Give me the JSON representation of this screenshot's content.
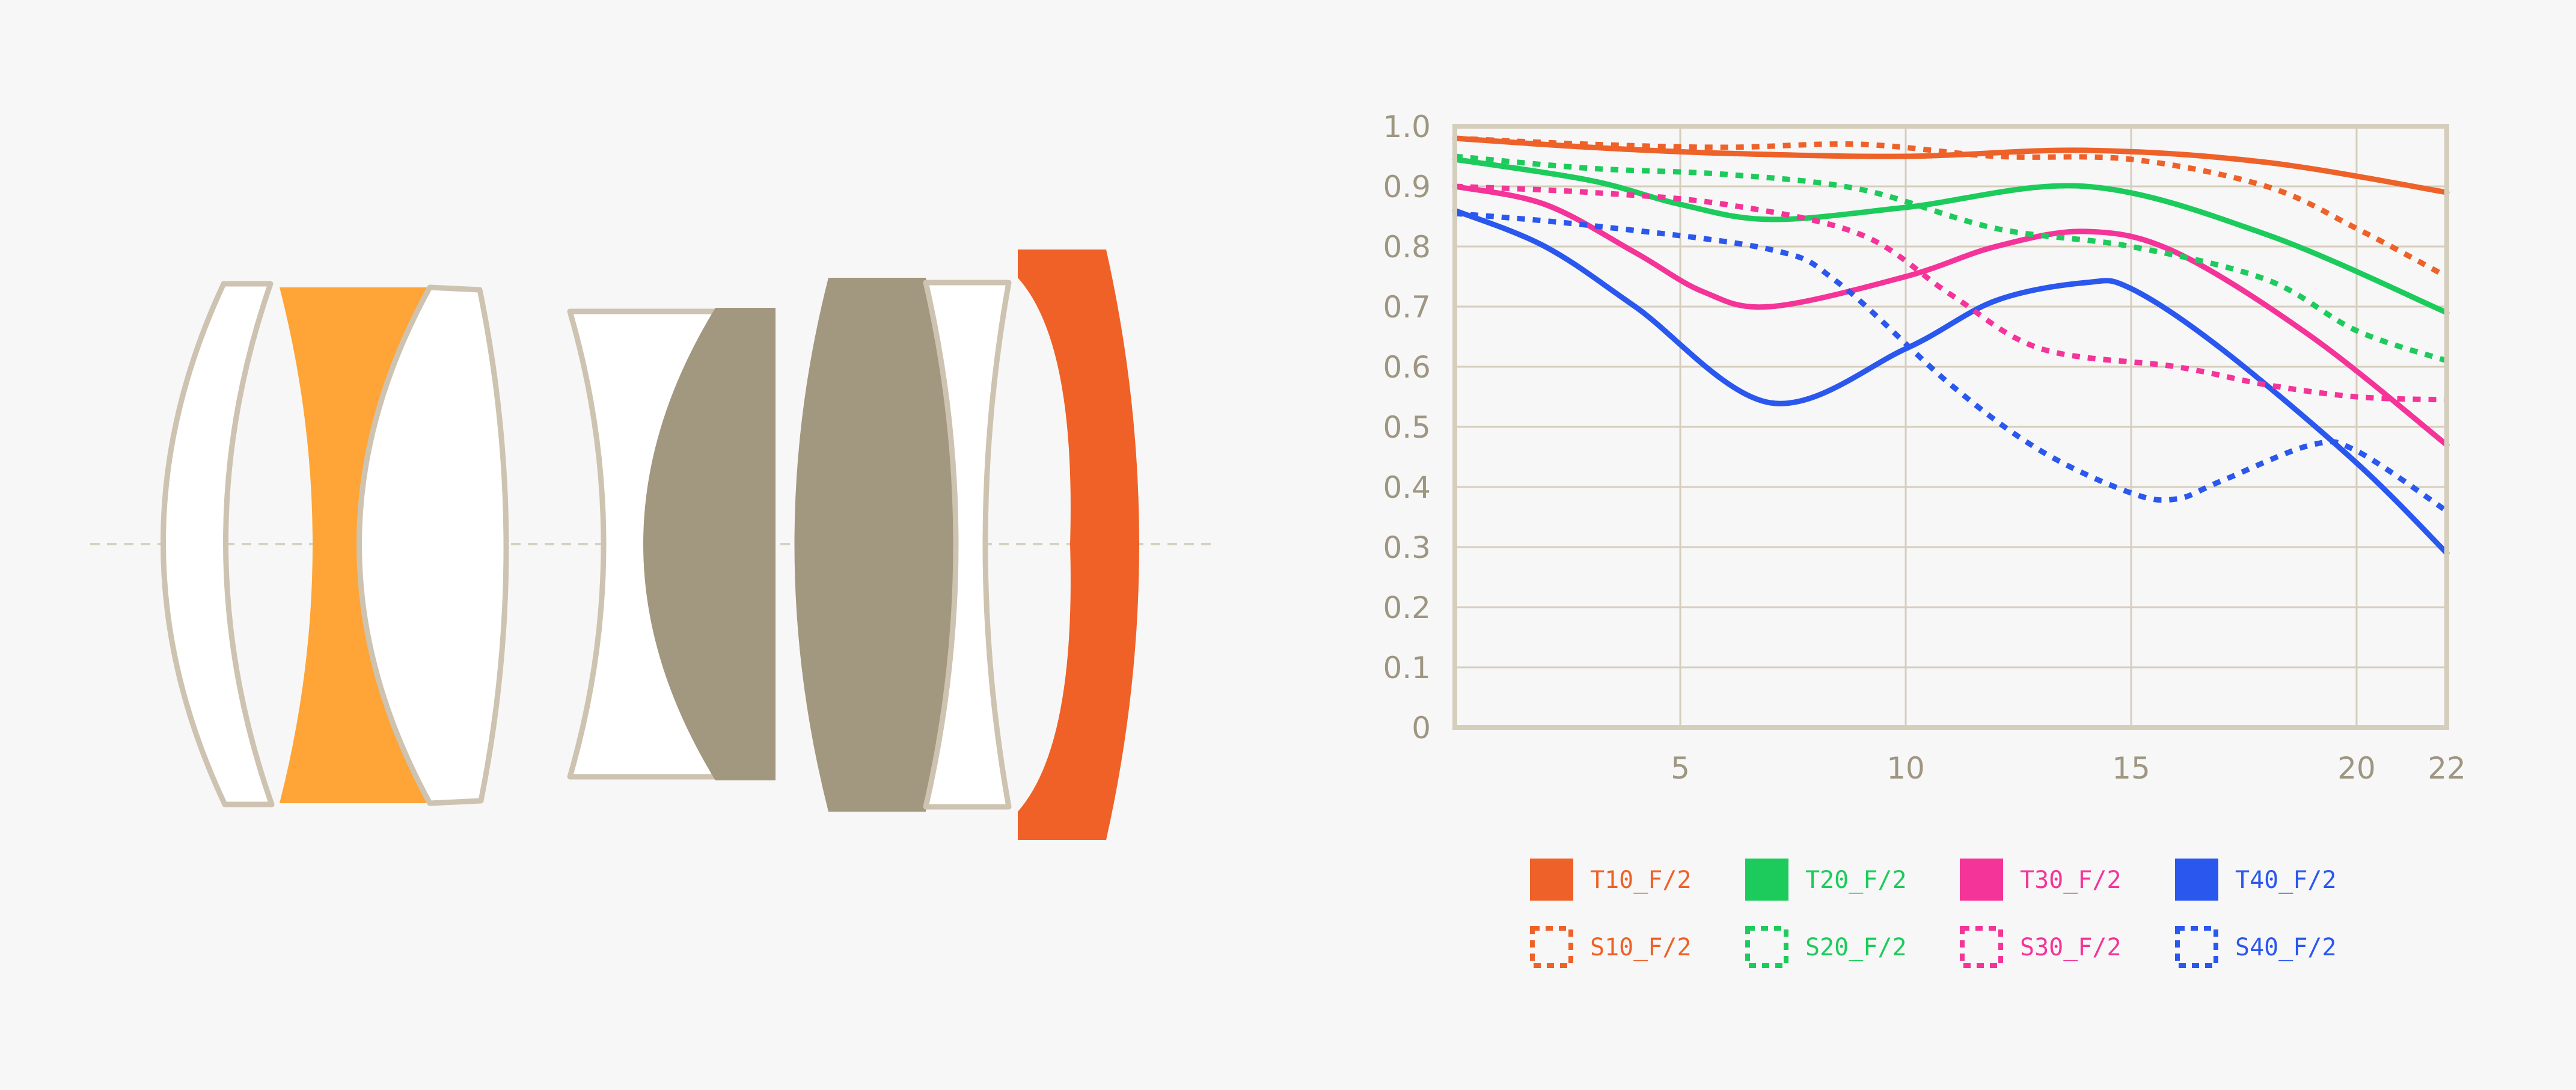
{
  "diagram": {
    "optical_axis_color": "#d6d0c2",
    "element_colors": {
      "outline": "#cec3b1",
      "clear": "#ffffff",
      "anomalous_dispersion": "#ffa436",
      "extra_low_dispersion": "#a2977f",
      "aspherical": "#f06127"
    }
  },
  "chart_data": {
    "type": "line",
    "xlim": [
      0,
      22
    ],
    "ylim": [
      0,
      1.0
    ],
    "x_ticks": [
      5,
      10,
      15,
      20,
      22
    ],
    "x_tick_labels": [
      "5",
      "10",
      "15",
      "20",
      "22"
    ],
    "y_ticks": [
      0,
      0.1,
      0.2,
      0.3,
      0.4,
      0.5,
      0.6,
      0.7,
      0.8,
      0.9,
      1.0
    ],
    "y_tick_labels": [
      "0",
      "0.1",
      "0.2",
      "0.3",
      "0.4",
      "0.5",
      "0.6",
      "0.7",
      "0.8",
      "0.9",
      "1.0"
    ],
    "grid": true,
    "legend_position": "bottom",
    "frame_color": "#d6cebd",
    "grid_color": "#d6cebd",
    "tick_color": "#9e9681",
    "series": [
      {
        "name": "T10_F/2",
        "style": "solid",
        "color": "#ee6128",
        "x": [
          0,
          3,
          6,
          10,
          14,
          18,
          22
        ],
        "y": [
          0.98,
          0.965,
          0.955,
          0.95,
          0.96,
          0.94,
          0.89
        ]
      },
      {
        "name": "T20_F/2",
        "style": "solid",
        "color": "#1ccb5b",
        "x": [
          0,
          3,
          5,
          7,
          10,
          14,
          18,
          22
        ],
        "y": [
          0.945,
          0.91,
          0.87,
          0.845,
          0.865,
          0.9,
          0.82,
          0.69
        ]
      },
      {
        "name": "T30_F/2",
        "style": "solid",
        "color": "#f43499",
        "x": [
          0,
          2,
          4,
          5.5,
          7,
          10,
          12,
          14,
          16,
          19,
          22
        ],
        "y": [
          0.9,
          0.87,
          0.79,
          0.725,
          0.7,
          0.75,
          0.8,
          0.825,
          0.79,
          0.65,
          0.47
        ]
      },
      {
        "name": "T40_F/2",
        "style": "solid",
        "color": "#2a57ee",
        "x": [
          0,
          2,
          4,
          7,
          10,
          12,
          14,
          15,
          17,
          20,
          22
        ],
        "y": [
          0.86,
          0.8,
          0.7,
          0.54,
          0.63,
          0.71,
          0.74,
          0.73,
          0.63,
          0.44,
          0.29
        ]
      },
      {
        "name": "S10_F/2",
        "style": "dotted",
        "color": "#ee6128",
        "x": [
          0,
          3,
          6,
          9,
          12,
          15,
          18,
          20,
          22
        ],
        "y": [
          0.98,
          0.97,
          0.965,
          0.97,
          0.95,
          0.945,
          0.9,
          0.83,
          0.75
        ]
      },
      {
        "name": "S20_F/2",
        "style": "dotted",
        "color": "#1ccb5b",
        "x": [
          0,
          3,
          6,
          9,
          12,
          15,
          18,
          20,
          22
        ],
        "y": [
          0.95,
          0.93,
          0.92,
          0.895,
          0.83,
          0.8,
          0.745,
          0.66,
          0.61
        ]
      },
      {
        "name": "S30_F/2",
        "style": "dotted",
        "color": "#f43499",
        "x": [
          0,
          3,
          6,
          9,
          11,
          13,
          16,
          18,
          20,
          22
        ],
        "y": [
          0.9,
          0.89,
          0.87,
          0.82,
          0.72,
          0.63,
          0.6,
          0.57,
          0.55,
          0.545
        ]
      },
      {
        "name": "S40_F/2",
        "style": "dotted",
        "color": "#2a57ee",
        "x": [
          0,
          3,
          7,
          8.5,
          11,
          13,
          15,
          16,
          17,
          19,
          20,
          22
        ],
        "y": [
          0.855,
          0.835,
          0.795,
          0.74,
          0.57,
          0.46,
          0.39,
          0.38,
          0.41,
          0.47,
          0.46,
          0.36
        ]
      }
    ]
  }
}
